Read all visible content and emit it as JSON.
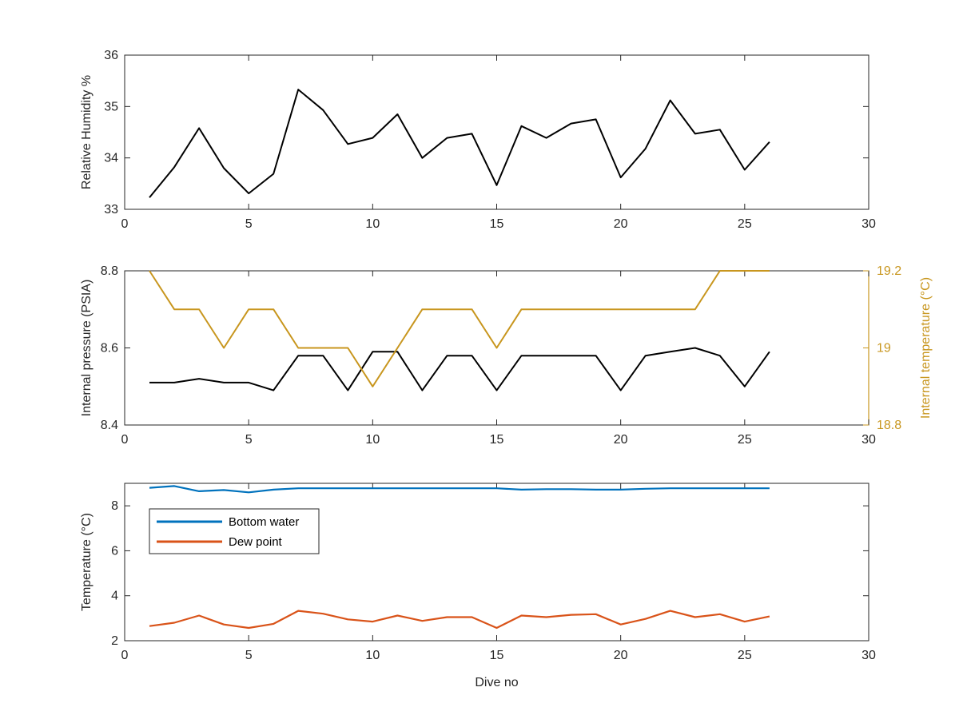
{
  "chart_data": [
    {
      "type": "line",
      "title": "",
      "xlabel": "",
      "ylabel": "Relative Humidity %",
      "xlim": [
        0,
        30
      ],
      "ylim": [
        33,
        36
      ],
      "xticks": [
        0,
        5,
        10,
        15,
        20,
        25,
        30
      ],
      "yticks": [
        33,
        34,
        35,
        36
      ],
      "grid": false,
      "x": [
        1,
        2,
        3,
        4,
        5,
        6,
        7,
        8,
        9,
        10,
        11,
        12,
        13,
        14,
        15,
        16,
        17,
        18,
        19,
        20,
        21,
        22,
        23,
        24,
        25,
        26
      ],
      "series": [
        {
          "color": "#000000",
          "values": [
            33.23,
            33.82,
            34.58,
            33.8,
            33.31,
            33.69,
            35.33,
            34.93,
            34.27,
            34.39,
            34.85,
            34.0,
            34.39,
            34.47,
            33.47,
            34.62,
            34.39,
            34.67,
            34.75,
            33.62,
            34.18,
            35.12,
            34.47,
            34.55,
            33.77,
            34.31
          ]
        }
      ]
    },
    {
      "type": "line",
      "title": "",
      "xlabel": "",
      "ylabel": "Internal pressure (PSIA)",
      "ylabel_right": "Internal temperature (°C)",
      "xlim": [
        0,
        30
      ],
      "ylim": [
        8.4,
        8.8
      ],
      "ylim_right": [
        18.8,
        19.2
      ],
      "xticks": [
        0,
        5,
        10,
        15,
        20,
        25,
        30
      ],
      "yticks": [
        8.4,
        8.6,
        8.8
      ],
      "yticks_right": [
        18.8,
        19,
        19.2
      ],
      "grid": false,
      "x": [
        1,
        2,
        3,
        4,
        5,
        6,
        7,
        8,
        9,
        10,
        11,
        12,
        13,
        14,
        15,
        16,
        17,
        18,
        19,
        20,
        21,
        22,
        23,
        24,
        25,
        26
      ],
      "series": [
        {
          "axis": "left",
          "color": "#000000",
          "values": [
            8.51,
            8.51,
            8.52,
            8.51,
            8.51,
            8.49,
            8.58,
            8.58,
            8.49,
            8.59,
            8.59,
            8.49,
            8.58,
            8.58,
            8.49,
            8.58,
            8.58,
            8.58,
            8.58,
            8.49,
            8.58,
            8.59,
            8.6,
            8.58,
            8.5,
            8.59
          ]
        },
        {
          "axis": "right",
          "color": "#C8961E",
          "values": [
            19.2,
            19.1,
            19.1,
            19.0,
            19.1,
            19.1,
            19.0,
            19.0,
            19.0,
            18.9,
            19.0,
            19.1,
            19.1,
            19.1,
            19.0,
            19.1,
            19.1,
            19.1,
            19.1,
            19.1,
            19.1,
            19.1,
            19.1,
            19.2,
            19.2,
            19.2
          ]
        }
      ]
    },
    {
      "type": "line",
      "title": "",
      "xlabel": "Dive no",
      "ylabel": "Temperature (°C)",
      "xlim": [
        0,
        30
      ],
      "ylim": [
        2,
        9
      ],
      "xticks": [
        0,
        5,
        10,
        15,
        20,
        25,
        30
      ],
      "yticks": [
        2,
        4,
        6,
        8
      ],
      "grid": false,
      "legend": "top-left",
      "x": [
        1,
        2,
        3,
        4,
        5,
        6,
        7,
        8,
        9,
        10,
        11,
        12,
        13,
        14,
        15,
        16,
        17,
        18,
        19,
        20,
        21,
        22,
        23,
        24,
        25,
        26
      ],
      "series": [
        {
          "name": "Bottom water",
          "color": "#0072BD",
          "values": [
            8.8,
            8.88,
            8.65,
            8.7,
            8.6,
            8.72,
            8.78,
            8.78,
            8.78,
            8.78,
            8.78,
            8.78,
            8.78,
            8.78,
            8.78,
            8.72,
            8.74,
            8.74,
            8.72,
            8.72,
            8.76,
            8.78,
            8.78,
            8.78,
            8.78,
            8.78
          ]
        },
        {
          "name": "Dew point",
          "color": "#D95319",
          "values": [
            2.65,
            2.8,
            3.12,
            2.72,
            2.57,
            2.75,
            3.33,
            3.2,
            2.95,
            2.85,
            3.12,
            2.88,
            3.05,
            3.05,
            2.57,
            3.12,
            3.05,
            3.15,
            3.18,
            2.72,
            2.97,
            3.33,
            3.05,
            3.18,
            2.85,
            3.08
          ]
        }
      ]
    }
  ]
}
